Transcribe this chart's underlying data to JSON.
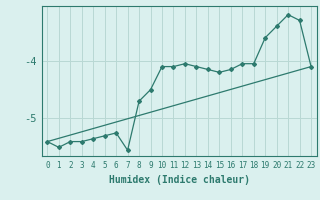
{
  "xlabel": "Humidex (Indice chaleur)",
  "ylabel": "",
  "background_color": "#daf0ee",
  "line_color": "#2d7a6e",
  "grid_color": "#b8d8d4",
  "xlim": [
    -0.5,
    23.5
  ],
  "ylim": [
    -5.65,
    -3.05
  ],
  "yticks": [
    -5,
    -4
  ],
  "xticks": [
    0,
    1,
    2,
    3,
    4,
    5,
    6,
    7,
    8,
    9,
    10,
    11,
    12,
    13,
    14,
    15,
    16,
    17,
    18,
    19,
    20,
    21,
    22,
    23
  ],
  "main_x": [
    0,
    1,
    2,
    3,
    4,
    5,
    6,
    7,
    8,
    9,
    10,
    11,
    12,
    13,
    14,
    15,
    16,
    17,
    18,
    19,
    20,
    21,
    22,
    23
  ],
  "main_y": [
    -5.4,
    -5.5,
    -5.4,
    -5.4,
    -5.35,
    -5.3,
    -5.25,
    -5.55,
    -4.7,
    -4.5,
    -4.1,
    -4.1,
    -4.05,
    -4.1,
    -4.15,
    -4.2,
    -4.15,
    -4.05,
    -4.05,
    -3.6,
    -3.4,
    -3.2,
    -3.3,
    -4.1
  ],
  "trend_x": [
    0,
    23
  ],
  "trend_y": [
    -5.4,
    -4.1
  ]
}
